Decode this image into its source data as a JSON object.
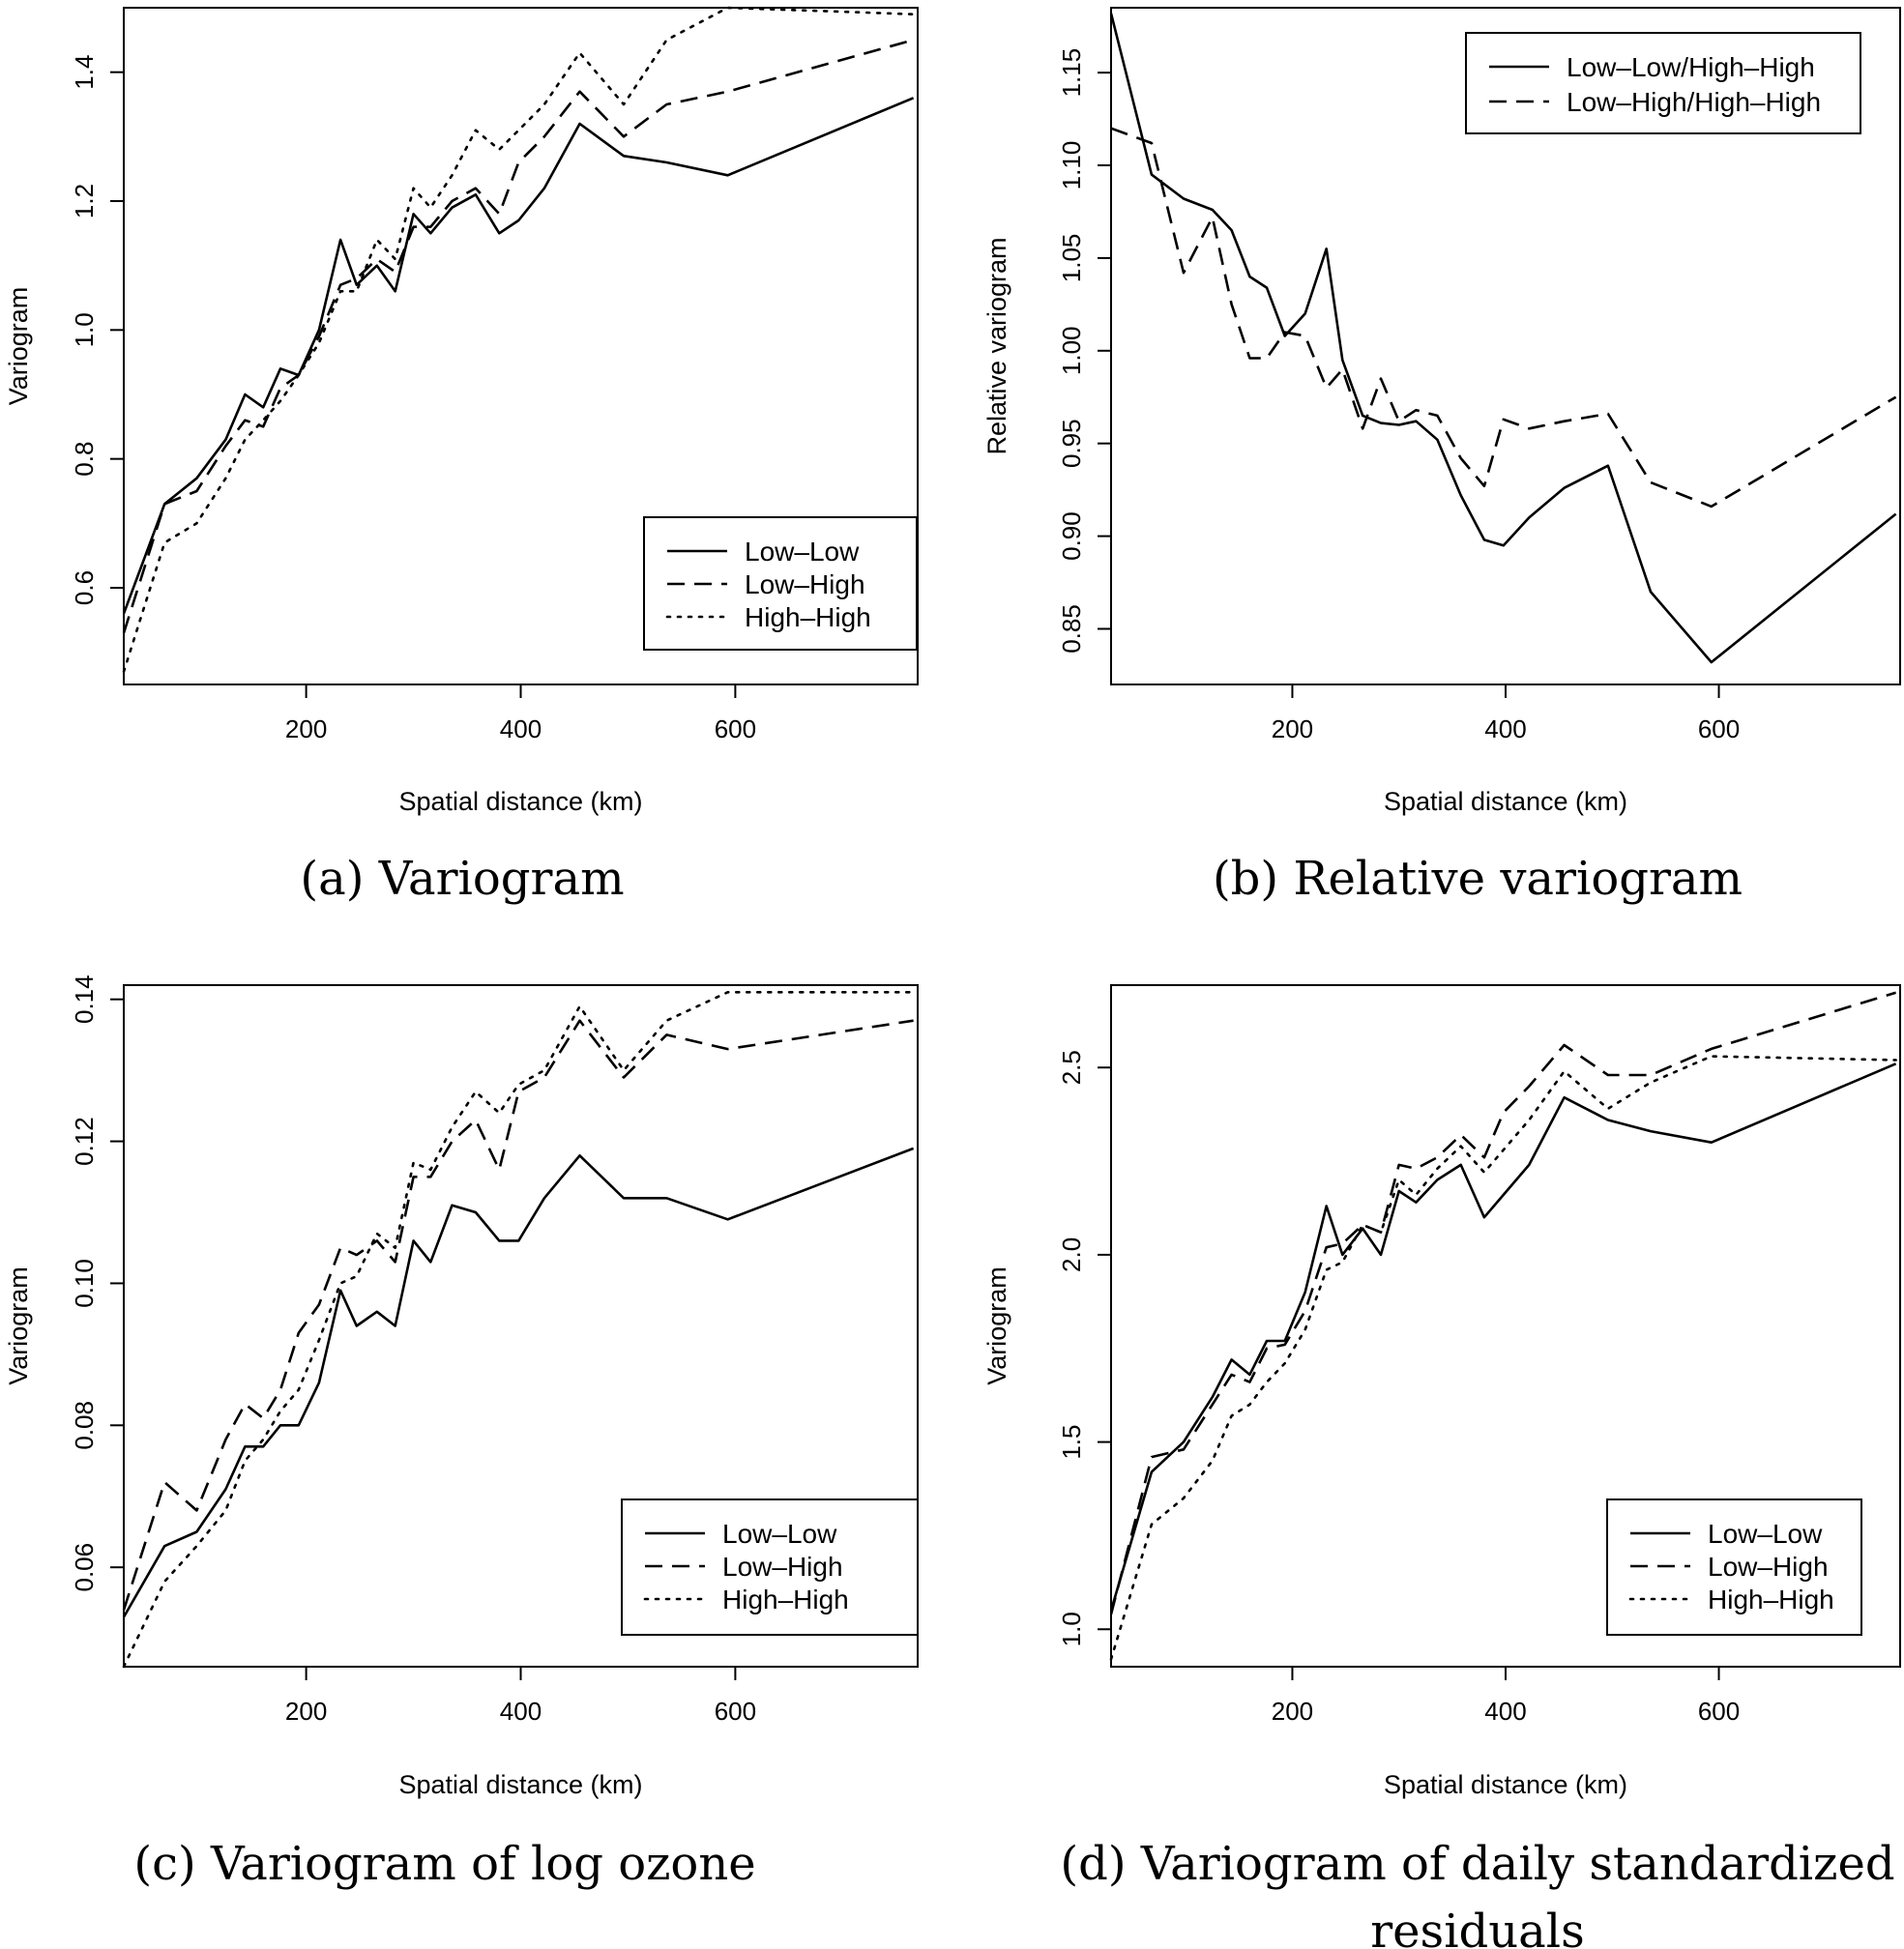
{
  "line_styles": {
    "Low–Low": "solid",
    "Low–High": "dashed",
    "High–High": "dotted",
    "Low–Low/High–High": "solid",
    "Low–High/High–High": "dashed"
  },
  "color": "#000000",
  "chart_data": [
    {
      "id": "a",
      "type": "line",
      "caption": "(a) Variogram",
      "xlabel": "Spatial distance (km)",
      "ylabel": "Variogram",
      "xlim": [
        30,
        770
      ],
      "ylim": [
        0.45,
        1.5
      ],
      "xticks": [
        200,
        400,
        600
      ],
      "xtick_labels": [
        "200",
        "400",
        "600"
      ],
      "yticks": [
        0.6,
        0.8,
        1.0,
        1.2,
        1.4
      ],
      "ytick_labels": [
        "0.6",
        "0.8",
        "1.0",
        "1.2",
        "1.4"
      ],
      "grid": false,
      "legend_position": "bottom-right",
      "x": [
        30,
        68,
        98,
        125,
        143,
        160,
        176,
        193,
        212,
        232,
        247,
        266,
        283,
        300,
        316,
        336,
        358,
        380,
        398,
        422,
        455,
        496,
        536,
        593,
        766
      ],
      "series": [
        {
          "name": "Low–Low",
          "values": [
            0.56,
            0.73,
            0.77,
            0.83,
            0.9,
            0.88,
            0.94,
            0.93,
            1.0,
            1.14,
            1.07,
            1.1,
            1.06,
            1.18,
            1.15,
            1.19,
            1.21,
            1.15,
            1.17,
            1.22,
            1.32,
            1.27,
            1.26,
            1.24,
            1.36
          ]
        },
        {
          "name": "Low–High",
          "values": [
            0.53,
            0.73,
            0.75,
            0.82,
            0.86,
            0.85,
            0.91,
            0.93,
            0.99,
            1.07,
            1.08,
            1.11,
            1.09,
            1.16,
            1.16,
            1.2,
            1.22,
            1.18,
            1.26,
            1.3,
            1.37,
            1.3,
            1.35,
            1.37,
            1.45
          ]
        },
        {
          "name": "High–High",
          "values": [
            0.47,
            0.67,
            0.7,
            0.77,
            0.83,
            0.86,
            0.89,
            0.93,
            0.98,
            1.06,
            1.06,
            1.14,
            1.11,
            1.22,
            1.19,
            1.24,
            1.31,
            1.28,
            1.31,
            1.35,
            1.43,
            1.35,
            1.45,
            1.5,
            1.49
          ]
        }
      ]
    },
    {
      "id": "b",
      "type": "line",
      "caption": "(b) Relative variogram",
      "xlabel": "Spatial distance (km)",
      "ylabel": "Relative variogram",
      "xlim": [
        30,
        770
      ],
      "ylim": [
        0.82,
        1.185
      ],
      "xticks": [
        200,
        400,
        600
      ],
      "xtick_labels": [
        "200",
        "400",
        "600"
      ],
      "yticks": [
        0.85,
        0.9,
        0.95,
        1.0,
        1.05,
        1.1,
        1.15
      ],
      "ytick_labels": [
        "0.85",
        "0.90",
        "0.95",
        "1.00",
        "1.05",
        "1.10",
        "1.15"
      ],
      "grid": false,
      "legend_position": "top-right",
      "x": [
        30,
        68,
        98,
        125,
        143,
        160,
        176,
        193,
        212,
        232,
        247,
        266,
        283,
        300,
        316,
        336,
        358,
        380,
        398,
        422,
        455,
        496,
        536,
        593,
        766
      ],
      "series": [
        {
          "name": "Low–Low/High–High",
          "values": [
            1.182,
            1.095,
            1.082,
            1.076,
            1.065,
            1.04,
            1.034,
            1.008,
            1.02,
            1.055,
            0.995,
            0.965,
            0.961,
            0.96,
            0.962,
            0.952,
            0.922,
            0.898,
            0.895,
            0.91,
            0.926,
            0.938,
            0.87,
            0.832,
            0.912
          ]
        },
        {
          "name": "Low–High/High–High",
          "values": [
            1.12,
            1.112,
            1.042,
            1.072,
            1.025,
            0.996,
            0.996,
            1.01,
            1.008,
            0.98,
            0.99,
            0.958,
            0.985,
            0.962,
            0.968,
            0.965,
            0.942,
            0.927,
            0.963,
            0.958,
            0.962,
            0.966,
            0.929,
            0.916,
            0.975
          ]
        }
      ]
    },
    {
      "id": "c",
      "type": "line",
      "caption": "(c) Variogram of log ozone",
      "xlabel": "Spatial distance (km)",
      "ylabel": "Variogram",
      "xlim": [
        30,
        770
      ],
      "ylim": [
        0.046,
        0.142
      ],
      "xticks": [
        200,
        400,
        600
      ],
      "xtick_labels": [
        "200",
        "400",
        "600"
      ],
      "yticks": [
        0.06,
        0.08,
        0.1,
        0.12,
        0.14
      ],
      "ytick_labels": [
        "0.06",
        "0.08",
        "0.10",
        "0.12",
        "0.14"
      ],
      "grid": false,
      "legend_position": "bottom-right",
      "x": [
        30,
        68,
        98,
        125,
        143,
        160,
        176,
        193,
        212,
        232,
        247,
        266,
        283,
        300,
        316,
        336,
        358,
        380,
        398,
        422,
        455,
        496,
        536,
        593,
        766
      ],
      "series": [
        {
          "name": "Low–Low",
          "values": [
            0.053,
            0.063,
            0.065,
            0.071,
            0.077,
            0.077,
            0.08,
            0.08,
            0.086,
            0.099,
            0.094,
            0.096,
            0.094,
            0.106,
            0.103,
            0.111,
            0.11,
            0.106,
            0.106,
            0.112,
            0.118,
            0.112,
            0.112,
            0.109,
            0.119
          ]
        },
        {
          "name": "Low–High",
          "values": [
            0.054,
            0.072,
            0.068,
            0.078,
            0.083,
            0.081,
            0.085,
            0.093,
            0.097,
            0.105,
            0.104,
            0.106,
            0.103,
            0.115,
            0.115,
            0.12,
            0.123,
            0.116,
            0.127,
            0.129,
            0.137,
            0.129,
            0.135,
            0.133,
            0.137
          ]
        },
        {
          "name": "High–High",
          "values": [
            0.046,
            0.058,
            0.063,
            0.068,
            0.075,
            0.078,
            0.082,
            0.085,
            0.092,
            0.1,
            0.101,
            0.107,
            0.105,
            0.117,
            0.116,
            0.122,
            0.127,
            0.124,
            0.128,
            0.13,
            0.139,
            0.13,
            0.137,
            0.141,
            0.141
          ]
        }
      ]
    },
    {
      "id": "d",
      "type": "line",
      "caption": "(d) Variogram of daily standardized residuals",
      "caption_lines": [
        "(d) Variogram of daily standardized",
        "residuals"
      ],
      "xlabel": "Spatial distance (km)",
      "ylabel": "Variogram",
      "xlim": [
        30,
        770
      ],
      "ylim": [
        0.9,
        2.72
      ],
      "xticks": [
        200,
        400,
        600
      ],
      "xtick_labels": [
        "200",
        "400",
        "600"
      ],
      "yticks": [
        1.0,
        1.5,
        2.0,
        2.5
      ],
      "ytick_labels": [
        "1.0",
        "1.5",
        "2.0",
        "2.5"
      ],
      "grid": false,
      "legend_position": "bottom-right",
      "x": [
        30,
        68,
        98,
        125,
        143,
        160,
        176,
        193,
        212,
        232,
        247,
        266,
        283,
        300,
        316,
        336,
        358,
        380,
        398,
        422,
        455,
        496,
        536,
        593,
        766
      ],
      "series": [
        {
          "name": "Low–Low",
          "values": [
            1.05,
            1.42,
            1.5,
            1.62,
            1.72,
            1.68,
            1.77,
            1.77,
            1.9,
            2.13,
            2.0,
            2.07,
            2.0,
            2.17,
            2.14,
            2.2,
            2.24,
            2.1,
            2.16,
            2.24,
            2.42,
            2.36,
            2.33,
            2.3,
            2.51
          ]
        },
        {
          "name": "Low–High",
          "values": [
            1.04,
            1.46,
            1.48,
            1.6,
            1.68,
            1.66,
            1.75,
            1.76,
            1.85,
            2.02,
            2.03,
            2.08,
            2.06,
            2.24,
            2.23,
            2.26,
            2.32,
            2.26,
            2.38,
            2.45,
            2.56,
            2.48,
            2.48,
            2.55,
            2.7
          ]
        },
        {
          "name": "High–High",
          "values": [
            0.92,
            1.28,
            1.35,
            1.45,
            1.57,
            1.6,
            1.66,
            1.71,
            1.8,
            1.96,
            1.98,
            2.08,
            2.06,
            2.2,
            2.16,
            2.23,
            2.29,
            2.22,
            2.28,
            2.36,
            2.49,
            2.39,
            2.46,
            2.53,
            2.52
          ]
        }
      ]
    }
  ]
}
